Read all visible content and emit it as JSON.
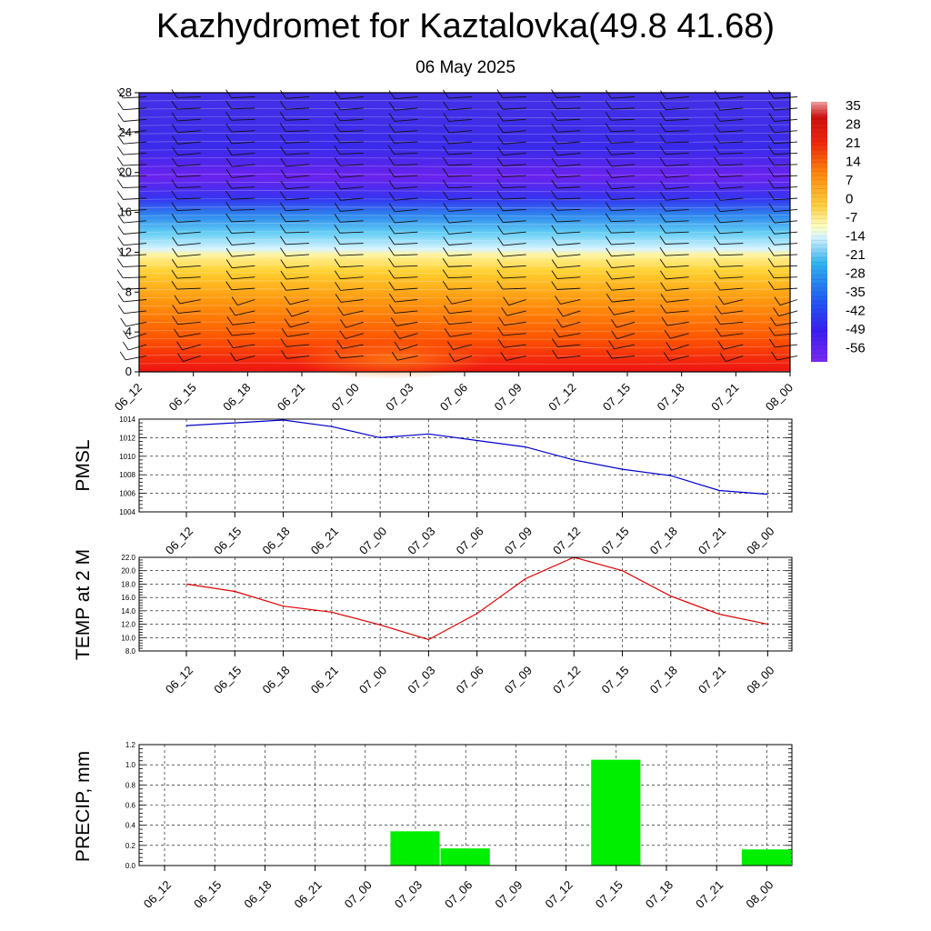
{
  "header": {
    "title": "Kazhydromet for Kaztalovka(49.8 41.68)",
    "subtitle": "06 May 2025"
  },
  "colors": {
    "pmsl_line": "#0000cc",
    "temp_line": "#dd0000",
    "precip_bar": "#00ee00"
  },
  "chart_data": [
    {
      "type": "heatmap",
      "title": "",
      "x_ticks": [
        "06_12",
        "06_15",
        "06_18",
        "06_21",
        "07_00",
        "07_03",
        "07_06",
        "07_09",
        "07_12",
        "07_15",
        "07_18",
        "07_21",
        "08_00"
      ],
      "y_ticks": [
        "0",
        "4",
        "8",
        "12",
        "16",
        "20",
        "24",
        "28"
      ],
      "ylim": [
        0,
        28
      ],
      "colorbar_labels": [
        "35",
        "28",
        "21",
        "14",
        "7",
        "0",
        "-7",
        "-14",
        "-21",
        "-28",
        "-35",
        "-42",
        "-49",
        "-56"
      ],
      "overlay": "wind barbs"
    },
    {
      "type": "line",
      "ylabel": "PMSL",
      "x": [
        "06_12",
        "06_15",
        "06_18",
        "06_21",
        "07_00",
        "07_03",
        "07_06",
        "07_09",
        "07_12",
        "07_15",
        "07_18",
        "07_21",
        "08_00"
      ],
      "series": [
        {
          "values": [
            1013.3,
            1013.6,
            1013.9,
            1013.2,
            1012.0,
            1012.4,
            1011.7,
            1011.0,
            1009.6,
            1008.6,
            1007.9,
            1006.3,
            1005.9
          ]
        }
      ],
      "ylim": [
        1004,
        1014
      ],
      "y_ticks": [
        "1004",
        "1006",
        "1008",
        "1010",
        "1012",
        "1014"
      ],
      "grid": true
    },
    {
      "type": "line",
      "ylabel": "TEMP at 2 M",
      "x": [
        "06_12",
        "06_15",
        "06_18",
        "06_21",
        "07_00",
        "07_03",
        "07_06",
        "07_09",
        "07_12",
        "07_15",
        "07_18",
        "07_21",
        "08_00"
      ],
      "series": [
        {
          "values": [
            18.0,
            16.9,
            14.7,
            13.8,
            11.9,
            9.7,
            13.6,
            18.8,
            22.0,
            20.0,
            16.2,
            13.5,
            12.0
          ]
        }
      ],
      "ylim": [
        8,
        22
      ],
      "y_ticks": [
        "8.0",
        "10.0",
        "12.0",
        "14.0",
        "16.0",
        "18.0",
        "20.0",
        "22.0"
      ],
      "grid": true
    },
    {
      "type": "bar",
      "ylabel": "PRECIP, mm",
      "categories": [
        "06_12",
        "06_15",
        "06_18",
        "06_21",
        "07_00",
        "07_03",
        "07_06",
        "07_09",
        "07_12",
        "07_15",
        "07_18",
        "07_21",
        "08_00"
      ],
      "values": [
        0,
        0,
        0,
        0,
        0,
        0.34,
        0.17,
        0,
        0,
        1.05,
        0,
        0,
        0.16
      ],
      "ylim": [
        0,
        1.2
      ],
      "y_ticks": [
        "0.0",
        "0.2",
        "0.4",
        "0.6",
        "0.8",
        "1.0",
        "1.2"
      ],
      "grid": true
    }
  ]
}
